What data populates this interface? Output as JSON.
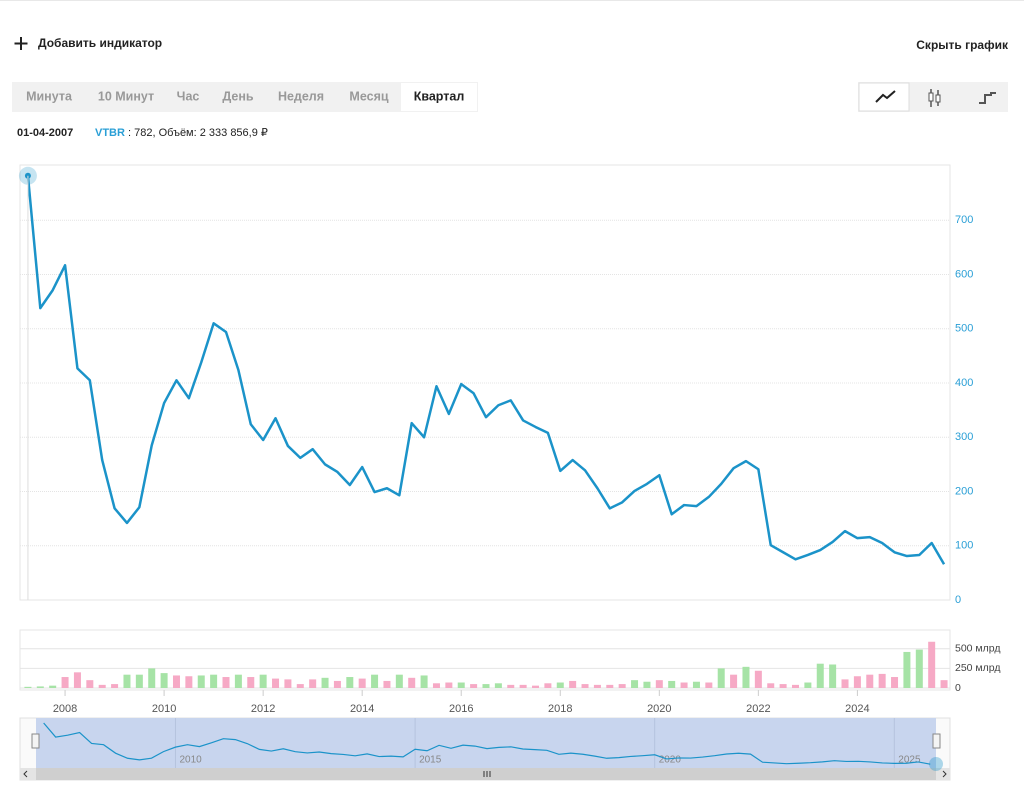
{
  "toolbar": {
    "add_indicator": "Добавить индикатор",
    "hide_chart": "Скрыть график",
    "tabs": [
      "Минута",
      "10 Минут",
      "Час",
      "День",
      "Неделя",
      "Месяц",
      "Квартал"
    ],
    "active_tab": 6
  },
  "info": {
    "date": "01-04-2007",
    "ticker_info": ": 782, Объём: 2 333 856,9 ₽"
  },
  "chart_data": {
    "type": "line",
    "x": [
      2007.25,
      2007.5,
      2007.75,
      2008,
      2008.25,
      2008.5,
      2008.75,
      2009,
      2009.25,
      2009.5,
      2009.75,
      2010,
      2010.25,
      2010.5,
      2010.75,
      2011,
      2011.25,
      2011.5,
      2011.75,
      2012,
      2012.25,
      2012.5,
      2012.75,
      2013,
      2013.25,
      2013.5,
      2013.75,
      2014,
      2014.25,
      2014.5,
      2014.75,
      2015,
      2015.25,
      2015.5,
      2015.75,
      2016,
      2016.25,
      2016.5,
      2016.75,
      2017,
      2017.25,
      2017.5,
      2017.75,
      2018,
      2018.25,
      2018.5,
      2018.75,
      2019,
      2019.25,
      2019.5,
      2019.75,
      2020,
      2020.25,
      2020.5,
      2020.75,
      2021,
      2021.25,
      2021.5,
      2021.75,
      2022,
      2022.25,
      2022.5,
      2022.75,
      2023,
      2023.25,
      2023.5,
      2023.75,
      2024,
      2024.25,
      2024.5,
      2024.75,
      2025,
      2025.25,
      2025.5,
      2025.75
    ],
    "series": [
      {
        "name": "VTBR",
        "color": "#1b93c9",
        "values": [
          782,
          538,
          571,
          617,
          427,
          405,
          258,
          169,
          142,
          171,
          285,
          363,
          405,
          372,
          438,
          510,
          494,
          424,
          324,
          295,
          335,
          284,
          262,
          278,
          250,
          236,
          212,
          245,
          199,
          206,
          193,
          326,
          300,
          394,
          343,
          398,
          381,
          337,
          359,
          368,
          331,
          319,
          308,
          238,
          258,
          239,
          206,
          169,
          180,
          201,
          214,
          230,
          158,
          175,
          173,
          190,
          214,
          243,
          256,
          241,
          101,
          88,
          75,
          83,
          92,
          107,
          127,
          114,
          116,
          105,
          88,
          81,
          83,
          105,
          66
        ]
      }
    ],
    "xlim": [
      2007.09,
      2025.87
    ],
    "xticks": [
      2008,
      2010,
      2012,
      2014,
      2016,
      2018,
      2020,
      2022,
      2024
    ],
    "ylim": [
      0,
      800
    ],
    "yticks": [
      0,
      100,
      200,
      300,
      400,
      500,
      600,
      700
    ],
    "grid": true,
    "volume": {
      "values": [
        15,
        20,
        30,
        140,
        200,
        100,
        40,
        50,
        170,
        170,
        250,
        190,
        160,
        150,
        160,
        170,
        140,
        170,
        140,
        170,
        120,
        110,
        50,
        110,
        130,
        90,
        140,
        120,
        170,
        90,
        170,
        130,
        160,
        60,
        70,
        70,
        50,
        50,
        60,
        40,
        40,
        30,
        60,
        70,
        90,
        50,
        40,
        40,
        50,
        100,
        80,
        100,
        90,
        70,
        80,
        70,
        250,
        170,
        270,
        220,
        60,
        50,
        40,
        70,
        310,
        300,
        110,
        150,
        170,
        180,
        140,
        460,
        490,
        590,
        100
      ],
      "colors": [
        "#a6e3a6",
        "#a6e3a6",
        "#a6e3a6",
        "#f6a9c5",
        "#f6a9c5",
        "#f6a9c5",
        "#f6a9c5",
        "#f6a9c5",
        "#a6e3a6",
        "#a6e3a6",
        "#a6e3a6",
        "#a6e3a6",
        "#f6a9c5",
        "#f6a9c5",
        "#a6e3a6",
        "#a6e3a6",
        "#f6a9c5",
        "#a6e3a6",
        "#f6a9c5",
        "#a6e3a6",
        "#f6a9c5",
        "#f6a9c5",
        "#f6a9c5",
        "#f6a9c5",
        "#a6e3a6",
        "#f6a9c5",
        "#a6e3a6",
        "#f6a9c5",
        "#a6e3a6",
        "#f6a9c5",
        "#a6e3a6",
        "#f6a9c5",
        "#a6e3a6",
        "#f6a9c5",
        "#f6a9c5",
        "#a6e3a6",
        "#f6a9c5",
        "#a6e3a6",
        "#a6e3a6",
        "#f6a9c5",
        "#f6a9c5",
        "#f6a9c5",
        "#f6a9c5",
        "#a6e3a6",
        "#f6a9c5",
        "#f6a9c5",
        "#f6a9c5",
        "#f6a9c5",
        "#f6a9c5",
        "#a6e3a6",
        "#a6e3a6",
        "#f6a9c5",
        "#a6e3a6",
        "#f6a9c5",
        "#a6e3a6",
        "#f6a9c5",
        "#a6e3a6",
        "#f6a9c5",
        "#a6e3a6",
        "#f6a9c5",
        "#f6a9c5",
        "#f6a9c5",
        "#f6a9c5",
        "#a6e3a6",
        "#a6e3a6",
        "#a6e3a6",
        "#f6a9c5",
        "#f6a9c5",
        "#f6a9c5",
        "#f6a9c5",
        "#f6a9c5",
        "#a6e3a6",
        "#a6e3a6",
        "#f6a9c5",
        "#f6a9c5"
      ],
      "ylim": [
        0,
        740
      ],
      "yticks": [
        0,
        {
          "value": 250,
          "label": "250 млрд"
        },
        {
          "value": 500,
          "label": "500 млрд"
        }
      ]
    },
    "navigator_xticks": [
      2010,
      2015,
      2020,
      2025
    ]
  }
}
